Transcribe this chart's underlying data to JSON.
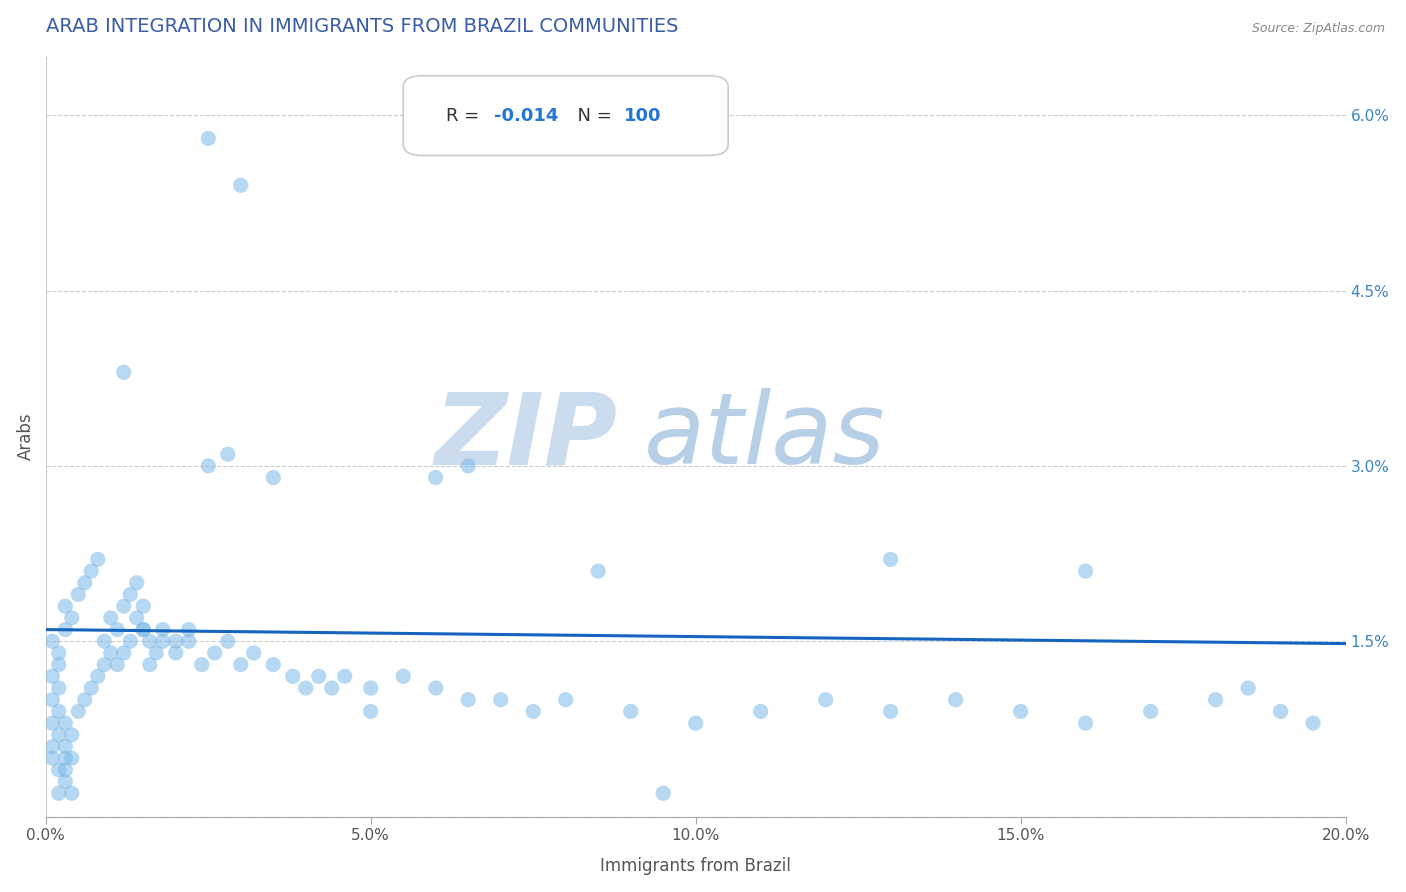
{
  "title": "ARAB INTEGRATION IN IMMIGRANTS FROM BRAZIL COMMUNITIES",
  "source": "Source: ZipAtlas.com",
  "xlabel": "Immigrants from Brazil",
  "ylabel": "Arabs",
  "R": "-0.014",
  "N": "100",
  "xlim": [
    0.0,
    0.2
  ],
  "ylim": [
    0.0,
    0.065
  ],
  "xticks": [
    0.0,
    0.05,
    0.1,
    0.15,
    0.2
  ],
  "xtick_labels": [
    "0.0%",
    "5.0%",
    "10.0%",
    "15.0%",
    "20.0%"
  ],
  "yticks": [
    0.0,
    0.015,
    0.03,
    0.045,
    0.06
  ],
  "ytick_labels": [
    "",
    "1.5%",
    "3.0%",
    "4.5%",
    "6.0%"
  ],
  "dot_color": "#7ab8e8",
  "dot_alpha": 0.55,
  "dot_size": 120,
  "line_color": "#1565c0",
  "grid_color": "#c8c8c8",
  "title_color": "#3a5ca8",
  "watermark_zip_color": "#ccdcef",
  "watermark_atlas_color": "#b8cfe8",
  "scatter_x": [
    0.002,
    0.003,
    0.004,
    0.001,
    0.002,
    0.001,
    0.003,
    0.002,
    0.001,
    0.002,
    0.003,
    0.001,
    0.002,
    0.003,
    0.004,
    0.002,
    0.001,
    0.003,
    0.002,
    0.001,
    0.004,
    0.003,
    0.005,
    0.004,
    0.003,
    0.006,
    0.005,
    0.007,
    0.006,
    0.008,
    0.007,
    0.009,
    0.008,
    0.01,
    0.009,
    0.011,
    0.01,
    0.012,
    0.011,
    0.013,
    0.012,
    0.014,
    0.013,
    0.015,
    0.014,
    0.016,
    0.015,
    0.017,
    0.016,
    0.018,
    0.02,
    0.022,
    0.024,
    0.026,
    0.028,
    0.03,
    0.032,
    0.035,
    0.038,
    0.04,
    0.042,
    0.044,
    0.046,
    0.05,
    0.055,
    0.06,
    0.065,
    0.07,
    0.075,
    0.08,
    0.09,
    0.1,
    0.11,
    0.12,
    0.13,
    0.14,
    0.15,
    0.16,
    0.17,
    0.18,
    0.19,
    0.195,
    0.025,
    0.03,
    0.035,
    0.025,
    0.028,
    0.06,
    0.065,
    0.085,
    0.012,
    0.015,
    0.018,
    0.02,
    0.022,
    0.05,
    0.13,
    0.16,
    0.185,
    0.095
  ],
  "scatter_y": [
    0.002,
    0.003,
    0.002,
    0.005,
    0.004,
    0.006,
    0.004,
    0.007,
    0.008,
    0.009,
    0.005,
    0.01,
    0.011,
    0.006,
    0.005,
    0.013,
    0.012,
    0.008,
    0.014,
    0.015,
    0.007,
    0.016,
    0.009,
    0.017,
    0.018,
    0.01,
    0.019,
    0.011,
    0.02,
    0.012,
    0.021,
    0.013,
    0.022,
    0.014,
    0.015,
    0.016,
    0.017,
    0.018,
    0.013,
    0.019,
    0.014,
    0.02,
    0.015,
    0.016,
    0.017,
    0.013,
    0.018,
    0.014,
    0.015,
    0.016,
    0.014,
    0.015,
    0.013,
    0.014,
    0.015,
    0.013,
    0.014,
    0.013,
    0.012,
    0.011,
    0.012,
    0.011,
    0.012,
    0.011,
    0.012,
    0.011,
    0.01,
    0.01,
    0.009,
    0.01,
    0.009,
    0.008,
    0.009,
    0.01,
    0.009,
    0.01,
    0.009,
    0.008,
    0.009,
    0.01,
    0.009,
    0.008,
    0.058,
    0.054,
    0.029,
    0.03,
    0.031,
    0.029,
    0.03,
    0.021,
    0.038,
    0.016,
    0.015,
    0.015,
    0.016,
    0.009,
    0.022,
    0.021,
    0.011,
    0.002
  ],
  "line_x": [
    0.0,
    0.2
  ],
  "line_y": [
    0.016,
    0.0148
  ]
}
